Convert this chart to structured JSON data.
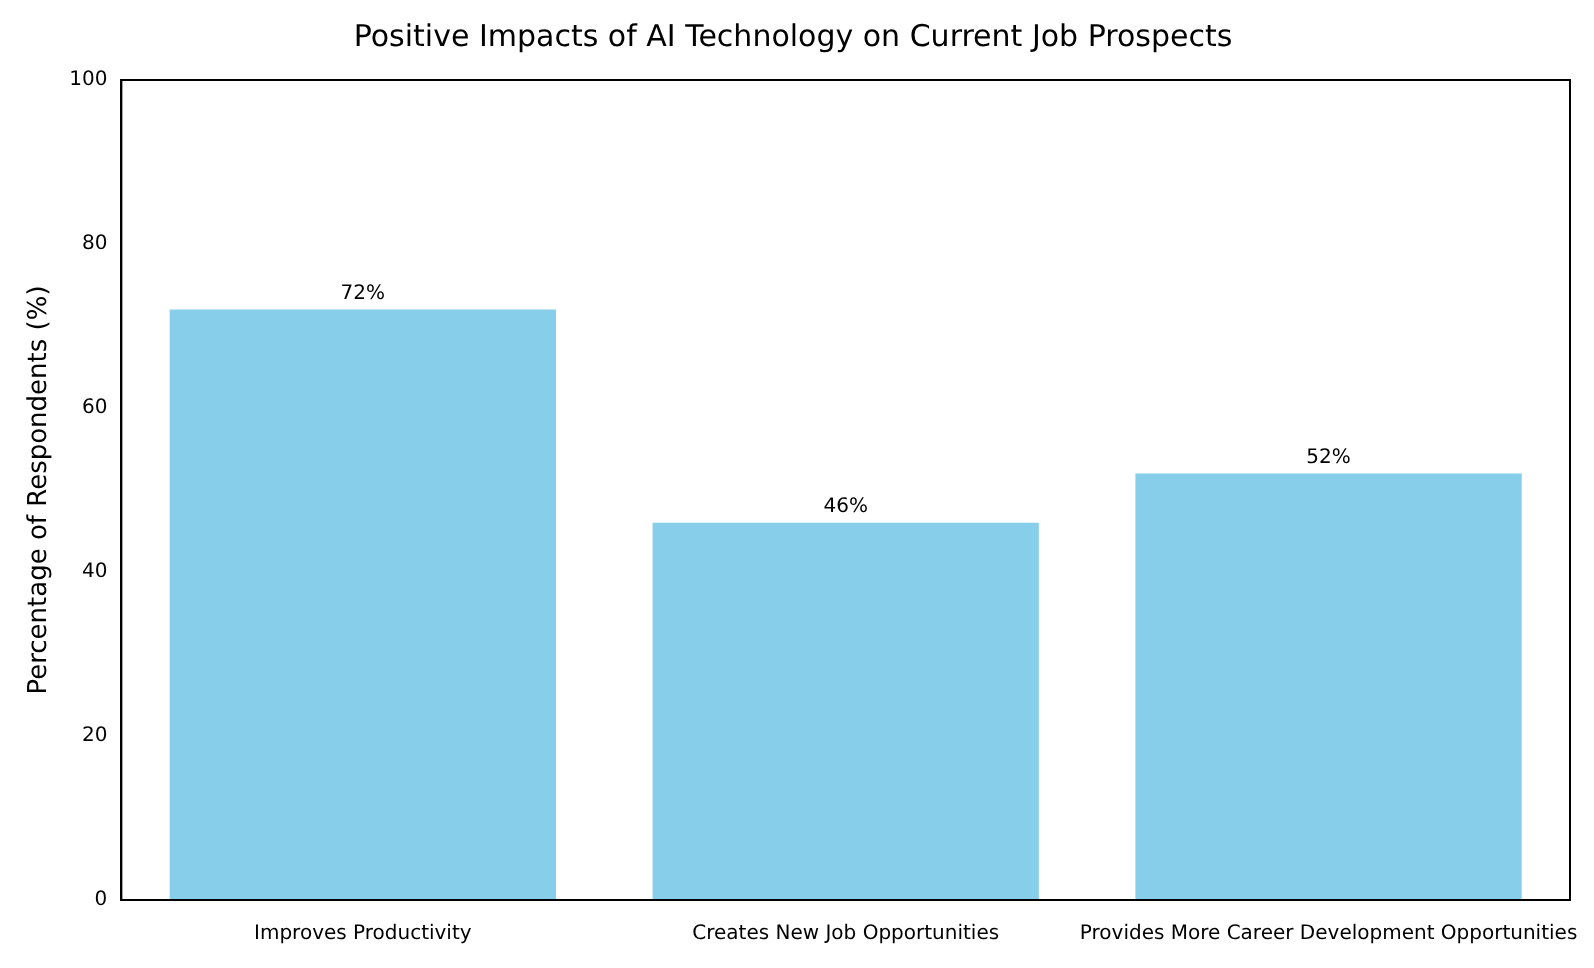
{
  "chart_data": {
    "type": "bar",
    "title": "Positive Impacts of AI Technology on Current Job Prospects",
    "ylabel": "Percentage of Respondents (%)",
    "categories": [
      "Improves Productivity",
      "Creates New Job Opportunities",
      "Provides More Career Development Opportunities"
    ],
    "values": [
      72,
      46,
      52
    ],
    "value_labels": [
      "72%",
      "46%",
      "52%"
    ],
    "color": "#87ceeb",
    "ylim": [
      0,
      100
    ],
    "yticks": [
      0,
      20,
      40,
      60,
      80,
      100
    ],
    "grid": false,
    "legend": false
  }
}
